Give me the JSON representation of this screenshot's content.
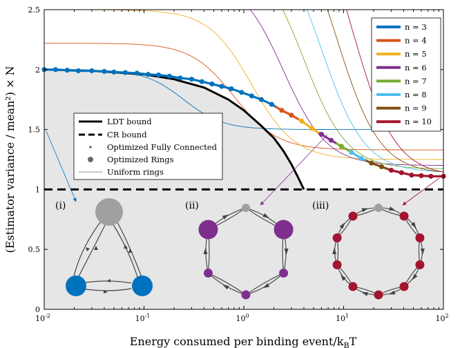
{
  "chart_data": {
    "type": "line",
    "xlabel": "Energy consumed per binding event/k",
    "xlabel_sub": "B",
    "xlabel_tail": "T",
    "ylabel": "(Estimator variance / mean²) × N",
    "xscale": "log",
    "xlim": [
      0.01,
      100
    ],
    "ylim": [
      0,
      2.5
    ],
    "x_ticks": [
      0.01,
      0.1,
      1,
      10,
      100
    ],
    "x_tick_labels": [
      [
        "10",
        "-2"
      ],
      [
        "10",
        "-1"
      ],
      [
        "10",
        "0"
      ],
      [
        "10",
        "1"
      ],
      [
        "10",
        "2"
      ]
    ],
    "y_ticks": [
      0,
      0.5,
      1,
      1.5,
      2,
      2.5
    ],
    "y_tick_labels": [
      "0",
      "0.5",
      "1",
      "1.5",
      "2",
      "2.5"
    ],
    "grid": false,
    "legend_rings": {
      "placement": "top-right",
      "entries": [
        {
          "label": "n = 3",
          "color": "#0072BD"
        },
        {
          "label": "n = 4",
          "color": "#D95319"
        },
        {
          "label": "n = 5",
          "color": "#EDB120"
        },
        {
          "label": "n = 6",
          "color": "#7E2F8E"
        },
        {
          "label": "n = 7",
          "color": "#77AC30"
        },
        {
          "label": "n = 8",
          "color": "#4DBEEE"
        },
        {
          "label": "n = 9",
          "color": "#7F4F0F"
        },
        {
          "label": "n = 10",
          "color": "#A2142F"
        }
      ]
    },
    "legend_bounds": {
      "placement": "center-left",
      "entries": [
        {
          "label": "LDT bound",
          "style": "thick-solid"
        },
        {
          "label": "CR bound",
          "style": "thick-dashed"
        },
        {
          "label": "Optimized Fully Connected",
          "style": "small-dot"
        },
        {
          "label": "Optimized Rings",
          "style": "large-dot"
        },
        {
          "label": "Uniform rings",
          "style": "thin-line"
        }
      ]
    },
    "cr_bound": 1,
    "ldt_bound": {
      "x": [
        0.01,
        0.03,
        0.1,
        0.2,
        0.4,
        0.7,
        1.0,
        1.5,
        2.0,
        2.5,
        3.0,
        3.5,
        4.0
      ],
      "y": [
        2.0,
        1.99,
        1.96,
        1.92,
        1.85,
        1.75,
        1.66,
        1.53,
        1.43,
        1.32,
        1.21,
        1.1,
        1.0
      ]
    },
    "uniform_rings": [
      {
        "name": "n = 3",
        "asymptote": 2.0,
        "x_half": 0.25,
        "k": 2.2
      },
      {
        "name": "n = 4",
        "asymptote": 2.22,
        "x_half": 0.8,
        "k": 2.0
      },
      {
        "name": "n = 5",
        "asymptote": 2.5,
        "x_half": 1.2,
        "k": 2.0
      },
      {
        "name": "n = 6",
        "asymptote": 2.78,
        "x_half": 2.5,
        "k": 2.0
      },
      {
        "name": "n = 7",
        "asymptote": 3.0,
        "x_half": 4.0,
        "k": 2.0
      },
      {
        "name": "n = 8",
        "asymptote": 3.2,
        "x_half": 6.0,
        "k": 2.0
      },
      {
        "name": "n = 9",
        "asymptote": 3.4,
        "x_half": 8.5,
        "k": 2.0
      },
      {
        "name": "n = 10",
        "asymptote": 3.6,
        "x_half": 12.0,
        "k": 2.0
      }
    ],
    "uniform_ring_floors": [
      1.5,
      1.33,
      1.25,
      1.2,
      1.17,
      1.14,
      1.13,
      1.11
    ],
    "optimized_rings": {
      "x": [
        0.01,
        0.013,
        0.017,
        0.022,
        0.03,
        0.04,
        0.05,
        0.065,
        0.085,
        0.11,
        0.14,
        0.18,
        0.23,
        0.3,
        0.38,
        0.48,
        0.6,
        0.75,
        0.95,
        1.2,
        1.5,
        1.9,
        2.4,
        3.0,
        3.8,
        4.8,
        6.0,
        7.5,
        9.5,
        12,
        15,
        19,
        24,
        30,
        38,
        48,
        60,
        75,
        100
      ],
      "y": [
        2.0,
        2.0,
        1.995,
        1.99,
        1.99,
        1.985,
        1.98,
        1.975,
        1.97,
        1.96,
        1.955,
        1.945,
        1.93,
        1.92,
        1.9,
        1.88,
        1.86,
        1.84,
        1.81,
        1.78,
        1.75,
        1.71,
        1.66,
        1.62,
        1.57,
        1.51,
        1.46,
        1.41,
        1.36,
        1.31,
        1.26,
        1.22,
        1.19,
        1.16,
        1.14,
        1.12,
        1.115,
        1.11,
        1.11
      ]
    },
    "ring_segments_x": [
      [
        0.01,
        2.1
      ],
      [
        2.1,
        3.6
      ],
      [
        3.6,
        5.8
      ],
      [
        5.8,
        8.5
      ],
      [
        8.5,
        12
      ],
      [
        12,
        17
      ],
      [
        17,
        30
      ],
      [
        30,
        100
      ]
    ],
    "insets": [
      {
        "label": "(i)",
        "n": 3,
        "color": "#0072BD"
      },
      {
        "label": "(ii)",
        "n": 6,
        "color": "#7E2F8E"
      },
      {
        "label": "(iii)",
        "n": 10,
        "color": "#A2142F"
      }
    ]
  }
}
